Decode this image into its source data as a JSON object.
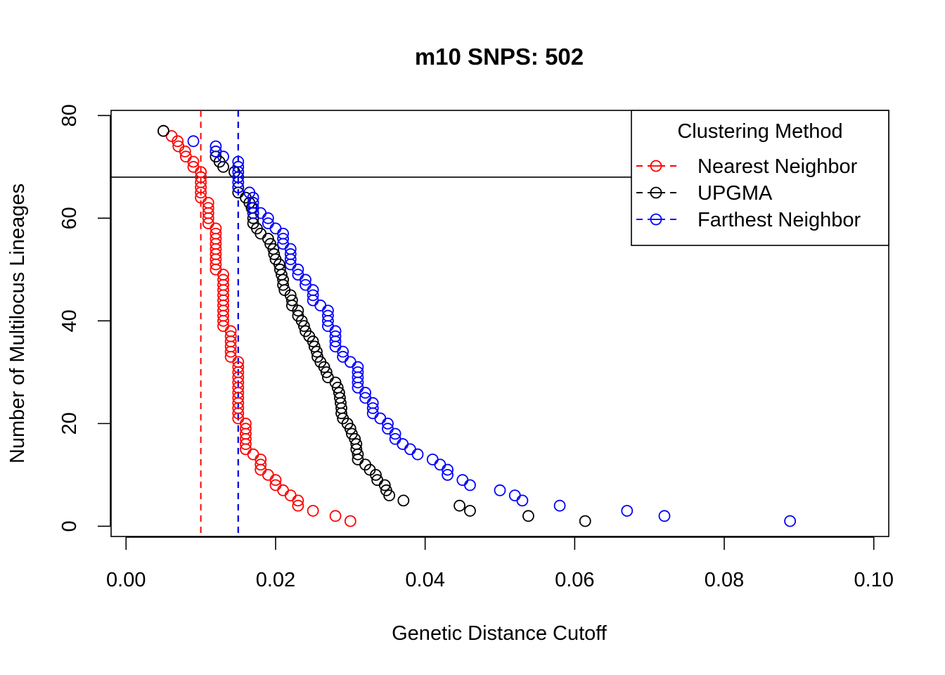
{
  "chart_data": {
    "type": "scatter",
    "title": "m10 SNPS: 502",
    "xlabel": "Genetic Distance Cutoff",
    "ylabel": "Number of Multilocus Lineages",
    "xlim": [
      -0.002,
      0.102
    ],
    "ylim": [
      -2,
      81
    ],
    "xticks": [
      {
        "value": 0.0,
        "label": "0.00"
      },
      {
        "value": 0.02,
        "label": "0.02"
      },
      {
        "value": 0.04,
        "label": "0.04"
      },
      {
        "value": 0.06,
        "label": "0.06"
      },
      {
        "value": 0.08,
        "label": "0.08"
      },
      {
        "value": 0.1,
        "label": "0.10"
      }
    ],
    "yticks": [
      {
        "value": 0,
        "label": "0"
      },
      {
        "value": 20,
        "label": "20"
      },
      {
        "value": 40,
        "label": "40"
      },
      {
        "value": 60,
        "label": "60"
      },
      {
        "value": 80,
        "label": "80"
      }
    ],
    "grid": false,
    "hline": {
      "y": 68,
      "color": "#000000"
    },
    "legend": {
      "title": "Clustering Method",
      "position": "top-right"
    },
    "series": [
      {
        "name": "Nearest Neighbor",
        "color": "#ff0000",
        "vline": 0.01,
        "points": [
          [
            0.005,
            77
          ],
          [
            0.0061,
            76
          ],
          [
            0.0069,
            75
          ],
          [
            0.007,
            74
          ],
          [
            0.0079,
            73
          ],
          [
            0.008,
            72
          ],
          [
            0.009,
            71
          ],
          [
            0.009,
            70
          ],
          [
            0.01,
            69
          ],
          [
            0.01,
            68
          ],
          [
            0.01,
            67
          ],
          [
            0.01,
            66
          ],
          [
            0.01,
            65
          ],
          [
            0.01,
            64
          ],
          [
            0.011,
            63
          ],
          [
            0.011,
            62
          ],
          [
            0.011,
            61
          ],
          [
            0.011,
            60
          ],
          [
            0.011,
            59
          ],
          [
            0.012,
            58
          ],
          [
            0.012,
            57
          ],
          [
            0.012,
            56
          ],
          [
            0.012,
            55
          ],
          [
            0.012,
            54
          ],
          [
            0.012,
            53
          ],
          [
            0.012,
            52
          ],
          [
            0.012,
            51
          ],
          [
            0.012,
            50
          ],
          [
            0.013,
            49
          ],
          [
            0.013,
            48
          ],
          [
            0.013,
            47
          ],
          [
            0.013,
            46
          ],
          [
            0.013,
            45
          ],
          [
            0.013,
            44
          ],
          [
            0.013,
            43
          ],
          [
            0.013,
            42
          ],
          [
            0.013,
            41
          ],
          [
            0.013,
            40
          ],
          [
            0.013,
            39
          ],
          [
            0.014,
            38
          ],
          [
            0.014,
            37
          ],
          [
            0.014,
            36
          ],
          [
            0.014,
            35
          ],
          [
            0.014,
            34
          ],
          [
            0.014,
            33
          ],
          [
            0.015,
            32
          ],
          [
            0.015,
            31
          ],
          [
            0.015,
            30
          ],
          [
            0.015,
            29
          ],
          [
            0.015,
            28
          ],
          [
            0.015,
            27
          ],
          [
            0.015,
            26
          ],
          [
            0.015,
            25
          ],
          [
            0.015,
            24
          ],
          [
            0.015,
            23
          ],
          [
            0.015,
            22
          ],
          [
            0.015,
            21
          ],
          [
            0.016,
            20
          ],
          [
            0.016,
            19
          ],
          [
            0.016,
            18
          ],
          [
            0.016,
            17
          ],
          [
            0.016,
            16
          ],
          [
            0.016,
            15
          ],
          [
            0.017,
            14
          ],
          [
            0.018,
            13
          ],
          [
            0.018,
            12
          ],
          [
            0.018,
            11
          ],
          [
            0.019,
            10
          ],
          [
            0.02,
            9
          ],
          [
            0.02,
            8
          ],
          [
            0.021,
            7
          ],
          [
            0.022,
            6
          ],
          [
            0.023,
            5
          ],
          [
            0.023,
            4
          ],
          [
            0.025,
            3
          ],
          [
            0.028,
            2
          ],
          [
            0.03,
            1
          ]
        ]
      },
      {
        "name": "UPGMA",
        "color": "#000000",
        "vline": 0.015,
        "points": [
          [
            0.005,
            77
          ],
          [
            0.012,
            73
          ],
          [
            0.012,
            72
          ],
          [
            0.0125,
            71
          ],
          [
            0.013,
            70
          ],
          [
            0.0145,
            69
          ],
          [
            0.015,
            68
          ],
          [
            0.015,
            66
          ],
          [
            0.015,
            65
          ],
          [
            0.016,
            64
          ],
          [
            0.0165,
            63
          ],
          [
            0.0168,
            62
          ],
          [
            0.017,
            61
          ],
          [
            0.017,
            60
          ],
          [
            0.017,
            59
          ],
          [
            0.0175,
            58
          ],
          [
            0.018,
            57
          ],
          [
            0.019,
            56
          ],
          [
            0.0193,
            55
          ],
          [
            0.0197,
            54
          ],
          [
            0.0198,
            53
          ],
          [
            0.02,
            52
          ],
          [
            0.0205,
            51
          ],
          [
            0.0206,
            50
          ],
          [
            0.0208,
            49
          ],
          [
            0.021,
            48
          ],
          [
            0.021,
            47
          ],
          [
            0.0212,
            46
          ],
          [
            0.022,
            45
          ],
          [
            0.0222,
            44
          ],
          [
            0.0222,
            43
          ],
          [
            0.023,
            42
          ],
          [
            0.023,
            41
          ],
          [
            0.0235,
            40
          ],
          [
            0.0238,
            39
          ],
          [
            0.024,
            38
          ],
          [
            0.0245,
            37
          ],
          [
            0.025,
            36
          ],
          [
            0.0252,
            35
          ],
          [
            0.0255,
            34
          ],
          [
            0.0256,
            33
          ],
          [
            0.026,
            32
          ],
          [
            0.0265,
            31
          ],
          [
            0.0268,
            30
          ],
          [
            0.027,
            29
          ],
          [
            0.028,
            28
          ],
          [
            0.0283,
            27
          ],
          [
            0.0285,
            26
          ],
          [
            0.0286,
            25
          ],
          [
            0.0287,
            24
          ],
          [
            0.0288,
            23
          ],
          [
            0.0288,
            22
          ],
          [
            0.029,
            21
          ],
          [
            0.0296,
            20
          ],
          [
            0.03,
            19
          ],
          [
            0.0302,
            18
          ],
          [
            0.0306,
            17
          ],
          [
            0.0308,
            16
          ],
          [
            0.0308,
            15
          ],
          [
            0.031,
            14
          ],
          [
            0.031,
            13
          ],
          [
            0.032,
            12
          ],
          [
            0.0326,
            11
          ],
          [
            0.0334,
            10
          ],
          [
            0.0336,
            9
          ],
          [
            0.0346,
            8
          ],
          [
            0.0348,
            7
          ],
          [
            0.0352,
            6
          ],
          [
            0.0371,
            5
          ],
          [
            0.0446,
            4
          ],
          [
            0.046,
            3
          ],
          [
            0.0538,
            2
          ],
          [
            0.0614,
            1
          ]
        ]
      },
      {
        "name": "Farthest Neighbor",
        "color": "#0000ff",
        "vline": 0.015,
        "points": [
          [
            0.009,
            75
          ],
          [
            0.012,
            74
          ],
          [
            0.012,
            73
          ],
          [
            0.013,
            72
          ],
          [
            0.015,
            71
          ],
          [
            0.015,
            70
          ],
          [
            0.015,
            69
          ],
          [
            0.015,
            68
          ],
          [
            0.015,
            67
          ],
          [
            0.015,
            66
          ],
          [
            0.0165,
            65
          ],
          [
            0.017,
            64
          ],
          [
            0.017,
            63
          ],
          [
            0.017,
            62
          ],
          [
            0.017,
            61
          ],
          [
            0.018,
            61
          ],
          [
            0.019,
            60
          ],
          [
            0.019,
            59
          ],
          [
            0.02,
            58
          ],
          [
            0.021,
            57
          ],
          [
            0.021,
            56
          ],
          [
            0.021,
            55
          ],
          [
            0.022,
            54
          ],
          [
            0.022,
            53
          ],
          [
            0.022,
            52
          ],
          [
            0.022,
            51
          ],
          [
            0.023,
            50
          ],
          [
            0.023,
            49
          ],
          [
            0.024,
            48
          ],
          [
            0.024,
            47
          ],
          [
            0.025,
            46
          ],
          [
            0.025,
            45
          ],
          [
            0.025,
            44
          ],
          [
            0.026,
            43
          ],
          [
            0.027,
            42
          ],
          [
            0.027,
            41
          ],
          [
            0.027,
            40
          ],
          [
            0.027,
            39
          ],
          [
            0.028,
            38
          ],
          [
            0.028,
            37
          ],
          [
            0.028,
            36
          ],
          [
            0.028,
            35
          ],
          [
            0.029,
            34
          ],
          [
            0.029,
            33
          ],
          [
            0.03,
            32
          ],
          [
            0.031,
            31
          ],
          [
            0.031,
            30
          ],
          [
            0.031,
            29
          ],
          [
            0.031,
            28
          ],
          [
            0.031,
            27
          ],
          [
            0.032,
            26
          ],
          [
            0.032,
            25
          ],
          [
            0.033,
            24
          ],
          [
            0.033,
            23
          ],
          [
            0.033,
            22
          ],
          [
            0.034,
            21
          ],
          [
            0.035,
            20
          ],
          [
            0.035,
            19
          ],
          [
            0.036,
            18
          ],
          [
            0.036,
            17
          ],
          [
            0.037,
            16
          ],
          [
            0.038,
            15
          ],
          [
            0.039,
            14
          ],
          [
            0.041,
            13
          ],
          [
            0.042,
            12
          ],
          [
            0.043,
            11
          ],
          [
            0.043,
            10
          ],
          [
            0.045,
            9
          ],
          [
            0.046,
            8
          ],
          [
            0.05,
            7
          ],
          [
            0.052,
            6
          ],
          [
            0.053,
            5
          ],
          [
            0.058,
            4
          ],
          [
            0.067,
            3
          ],
          [
            0.072,
            2
          ],
          [
            0.0888,
            1
          ]
        ]
      }
    ]
  }
}
